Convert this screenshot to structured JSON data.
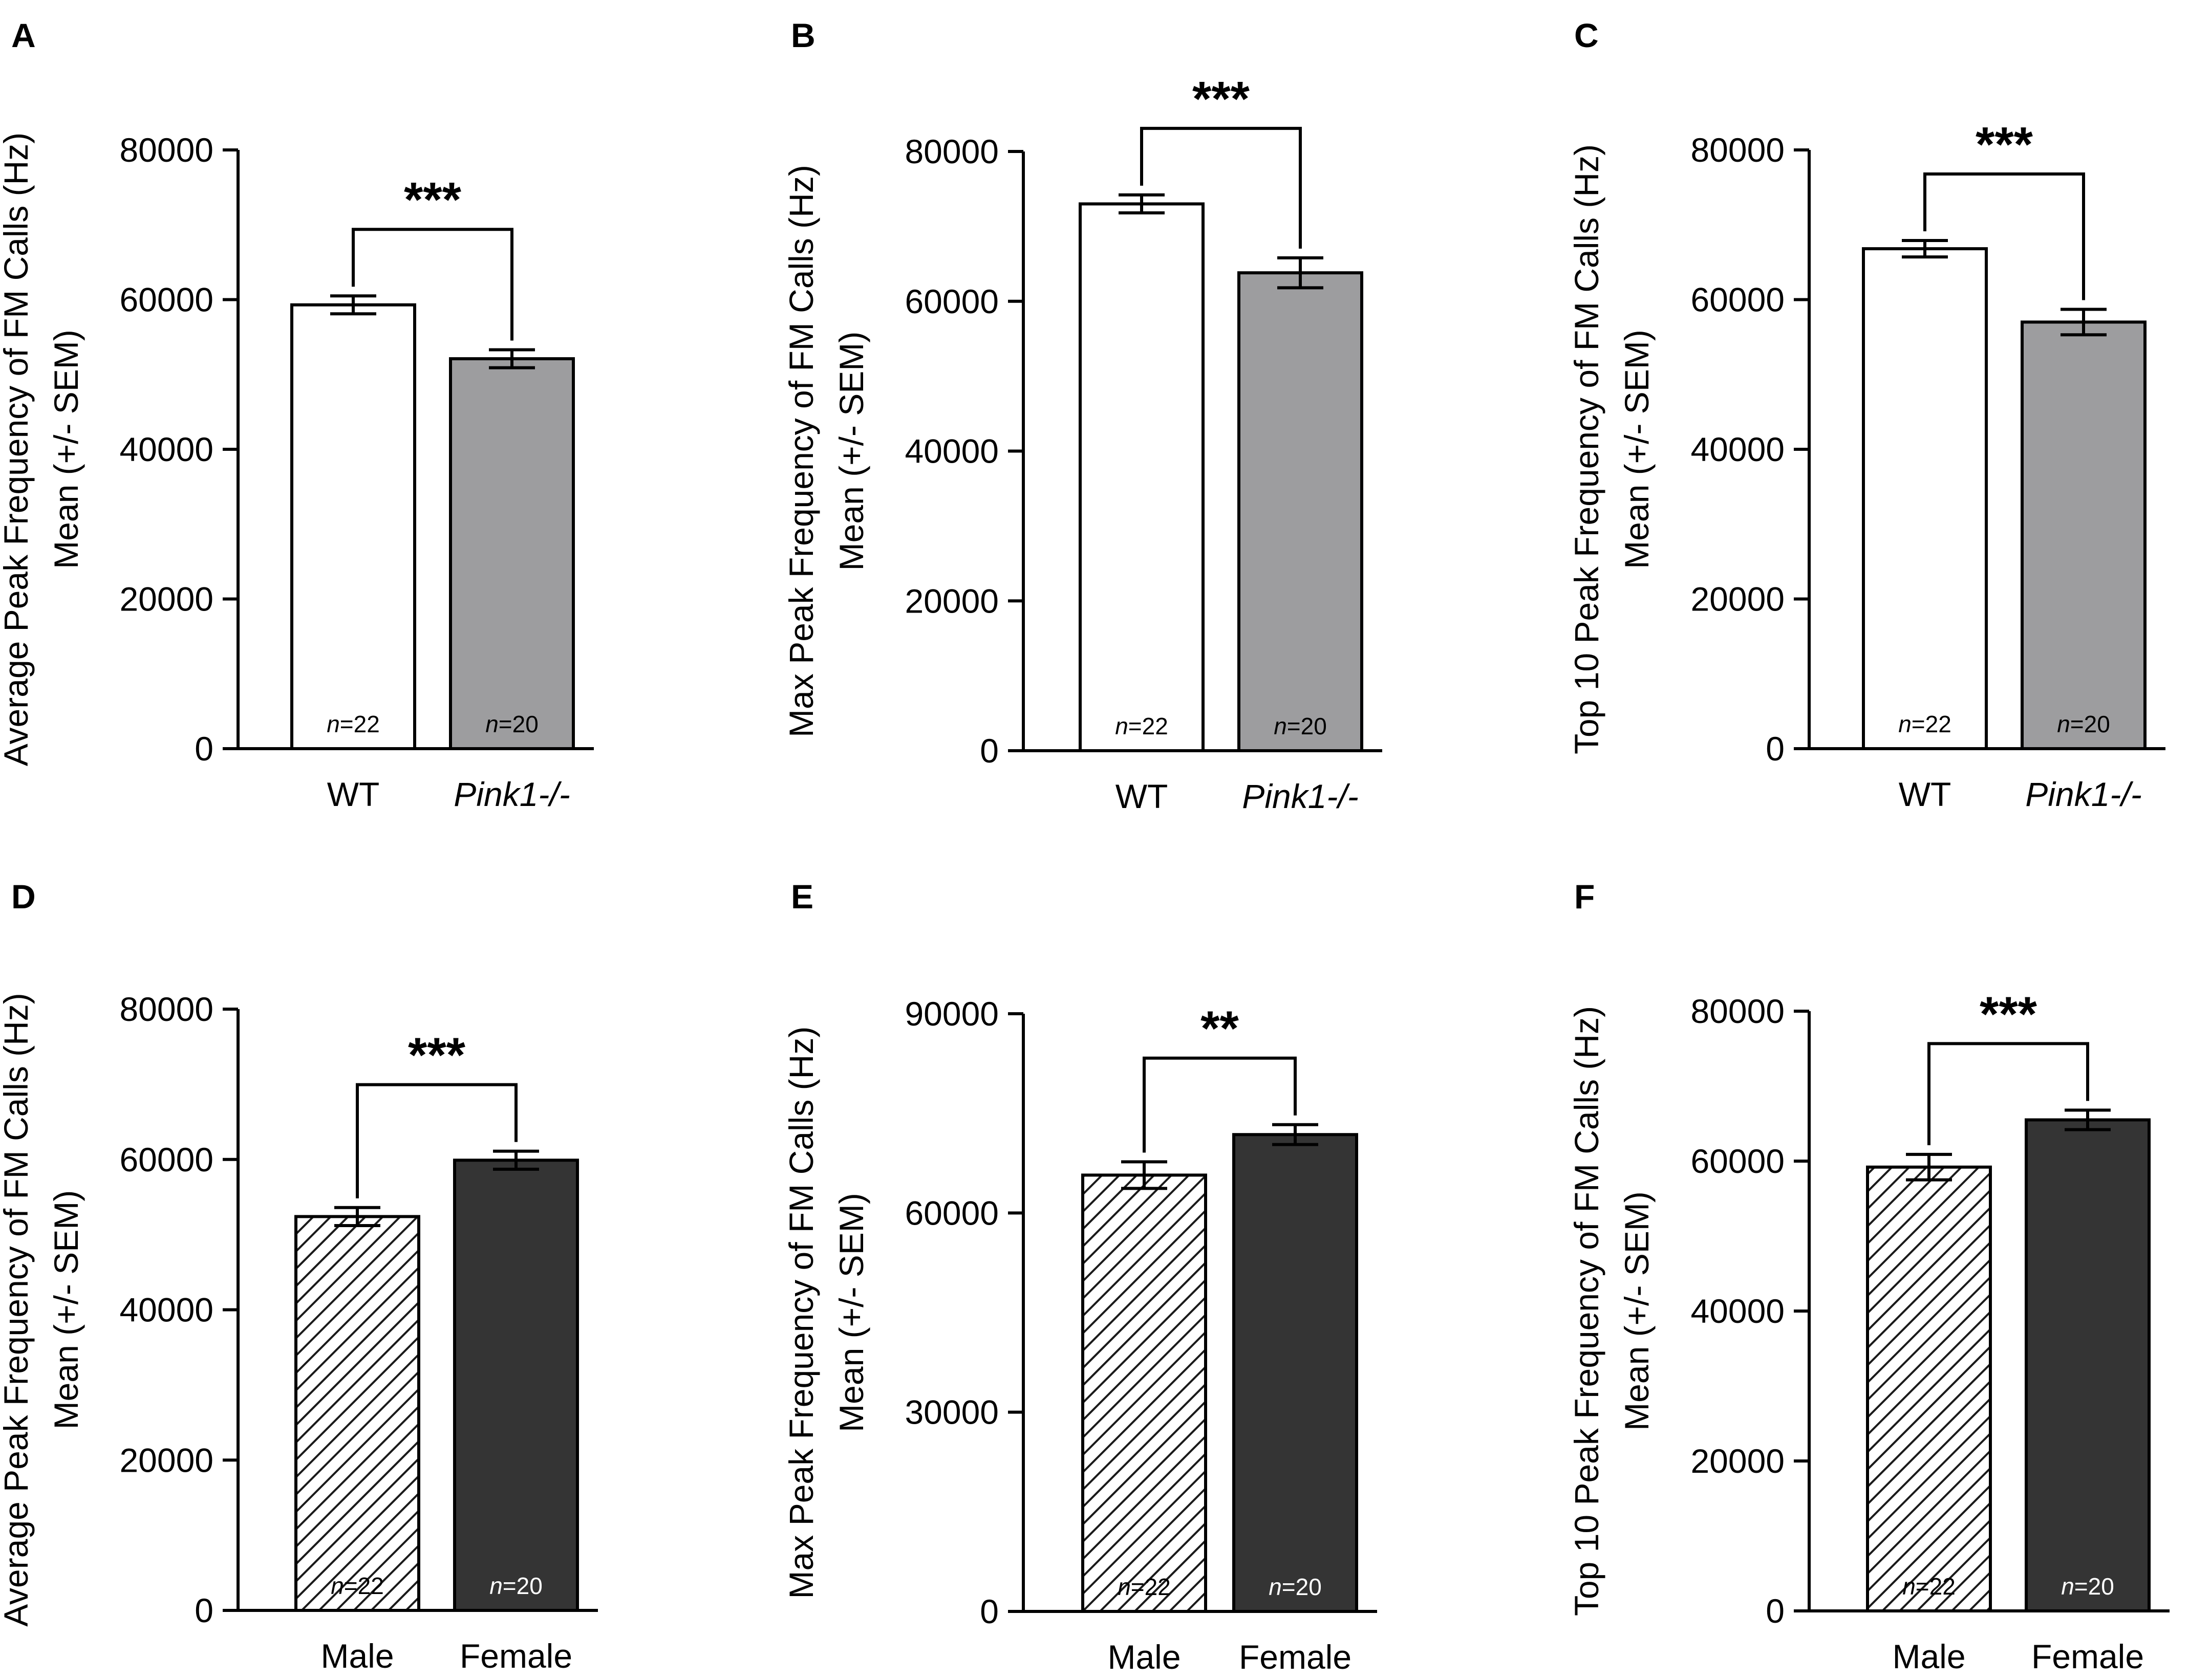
{
  "colors": {
    "wt": "#ffffff",
    "pink1": "#9d9d9f",
    "male": "#ffffff",
    "female": "#343434",
    "hatch": "#1a1a1a",
    "stroke": "#000000"
  },
  "chart_data": [
    {
      "panel": "A",
      "type": "bar",
      "ylabel_lines": [
        "Average Peak Frequency of FM Calls (Hz)",
        "Mean (+/- SEM)"
      ],
      "ylim": [
        0,
        80000
      ],
      "ticks": [
        0,
        20000,
        40000,
        60000,
        80000
      ],
      "categories": [
        "WT",
        "Pink1-/-"
      ],
      "italic_categories": [
        false,
        true
      ],
      "fills": [
        "wt",
        "pink1"
      ],
      "values": [
        59300,
        52100
      ],
      "sem": [
        1200,
        1200
      ],
      "n_labels": [
        [
          "n",
          "=22"
        ],
        [
          "n",
          "=20"
        ]
      ],
      "significance": "***"
    },
    {
      "panel": "B",
      "type": "bar",
      "ylabel_lines": [
        "Max Peak Frequency of FM Calls (Hz)",
        "Mean (+/- SEM)"
      ],
      "ylim": [
        0,
        80000
      ],
      "ticks": [
        0,
        20000,
        40000,
        60000,
        80000
      ],
      "categories": [
        "WT",
        "Pink1-/-"
      ],
      "italic_categories": [
        false,
        true
      ],
      "fills": [
        "wt",
        "pink1"
      ],
      "values": [
        73000,
        63800
      ],
      "sem": [
        1200,
        2000
      ],
      "n_labels": [
        [
          "n",
          "=22"
        ],
        [
          "n",
          "=20"
        ]
      ],
      "significance": "***"
    },
    {
      "panel": "C",
      "type": "bar",
      "ylabel_lines": [
        "Top 10 Peak Frequency of FM Calls (Hz)",
        "Mean (+/- SEM)"
      ],
      "ylim": [
        0,
        80000
      ],
      "ticks": [
        0,
        20000,
        40000,
        60000,
        80000
      ],
      "categories": [
        "WT",
        "Pink1-/-"
      ],
      "italic_categories": [
        false,
        true
      ],
      "fills": [
        "wt",
        "pink1"
      ],
      "values": [
        66800,
        57000
      ],
      "sem": [
        1100,
        1700
      ],
      "n_labels": [
        [
          "n",
          "=22"
        ],
        [
          "n",
          "=20"
        ]
      ],
      "significance": "***"
    },
    {
      "panel": "D",
      "type": "bar",
      "ylabel_lines": [
        "Average Peak Frequency of FM Calls (Hz)",
        "Mean (+/- SEM)"
      ],
      "ylim": [
        0,
        80000
      ],
      "ticks": [
        0,
        20000,
        40000,
        60000,
        80000
      ],
      "categories": [
        "Male",
        "Female"
      ],
      "italic_categories": [
        false,
        false
      ],
      "fills": [
        "male",
        "female"
      ],
      "values": [
        52400,
        59900
      ],
      "sem": [
        1200,
        1200
      ],
      "n_labels": [
        [
          "n",
          "=22"
        ],
        [
          "n",
          "=20"
        ]
      ],
      "significance": "***"
    },
    {
      "panel": "E",
      "type": "bar",
      "ylabel_lines": [
        "Max Peak Frequency of FM Calls (Hz)",
        "Mean (+/- SEM)"
      ],
      "ylim": [
        0,
        90000
      ],
      "ticks": [
        0,
        30000,
        60000,
        90000
      ],
      "categories": [
        "Male",
        "Female"
      ],
      "italic_categories": [
        false,
        false
      ],
      "fills": [
        "male",
        "female"
      ],
      "values": [
        65700,
        71800
      ],
      "sem": [
        2000,
        1500
      ],
      "n_labels": [
        [
          "n",
          "=22"
        ],
        [
          "n",
          "=20"
        ]
      ],
      "significance": "**"
    },
    {
      "panel": "F",
      "type": "bar",
      "ylabel_lines": [
        "Top 10 Peak Frequency of FM Calls (Hz)",
        "Mean (+/- SEM)"
      ],
      "ylim": [
        0,
        80000
      ],
      "ticks": [
        0,
        20000,
        40000,
        60000,
        80000
      ],
      "categories": [
        "Male",
        "Female"
      ],
      "italic_categories": [
        false,
        false
      ],
      "fills": [
        "male",
        "female"
      ],
      "values": [
        59200,
        65500
      ],
      "sem": [
        1700,
        1300
      ],
      "n_labels": [
        [
          "n",
          "=22"
        ],
        [
          "n",
          "=20"
        ]
      ],
      "significance": "***"
    }
  ]
}
